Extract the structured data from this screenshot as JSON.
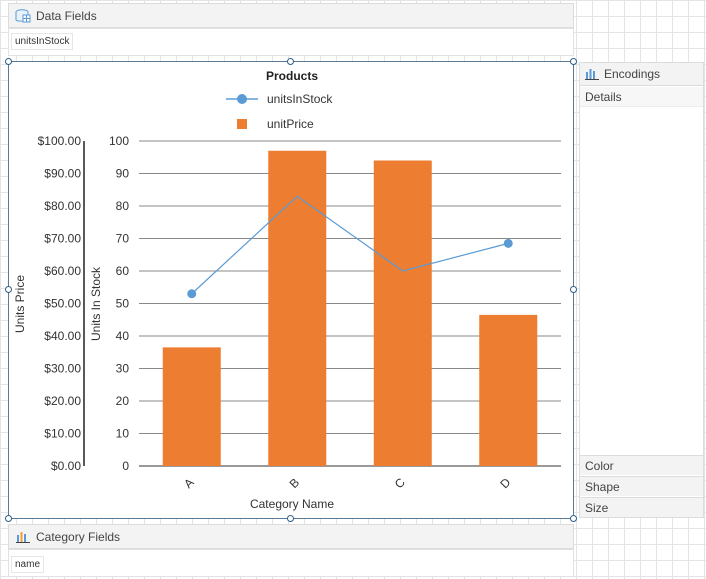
{
  "data_fields": {
    "title": "Data Fields",
    "chip": "unitsInStock"
  },
  "category_fields": {
    "title": "Category Fields",
    "chip": "name"
  },
  "encodings": {
    "title": "Encodings",
    "details": "Details",
    "color": "Color",
    "shape": "Shape",
    "size": "Size"
  },
  "chart_data": {
    "type": "bar",
    "title": "Products",
    "categories": [
      "A",
      "B",
      "C",
      "D"
    ],
    "xlabel": "Category Name",
    "series": [
      {
        "name": "unitPrice",
        "type": "bar",
        "axis": "left",
        "color": "#ed7d31",
        "values": [
          36.5,
          97,
          94,
          46.5
        ]
      },
      {
        "name": "unitsInStock",
        "type": "line",
        "axis": "right",
        "color": "#5b9bd5",
        "values": [
          53,
          83,
          60,
          68.5
        ]
      }
    ],
    "left_axis": {
      "label": "Units Price",
      "range": [
        0,
        100
      ],
      "ticks": [
        "$100.00",
        "$90.00",
        "$80.00",
        "$70.00",
        "$60.00",
        "$50.00",
        "$40.00",
        "$30.00",
        "$20.00",
        "$10.00",
        "$0.00"
      ]
    },
    "right_axis": {
      "label": "Units In Stock",
      "range": [
        0,
        100
      ],
      "ticks": [
        "100",
        "90",
        "80",
        "70",
        "60",
        "50",
        "40",
        "30",
        "20",
        "10",
        "0"
      ]
    },
    "legend": "top-center",
    "grid": true
  }
}
